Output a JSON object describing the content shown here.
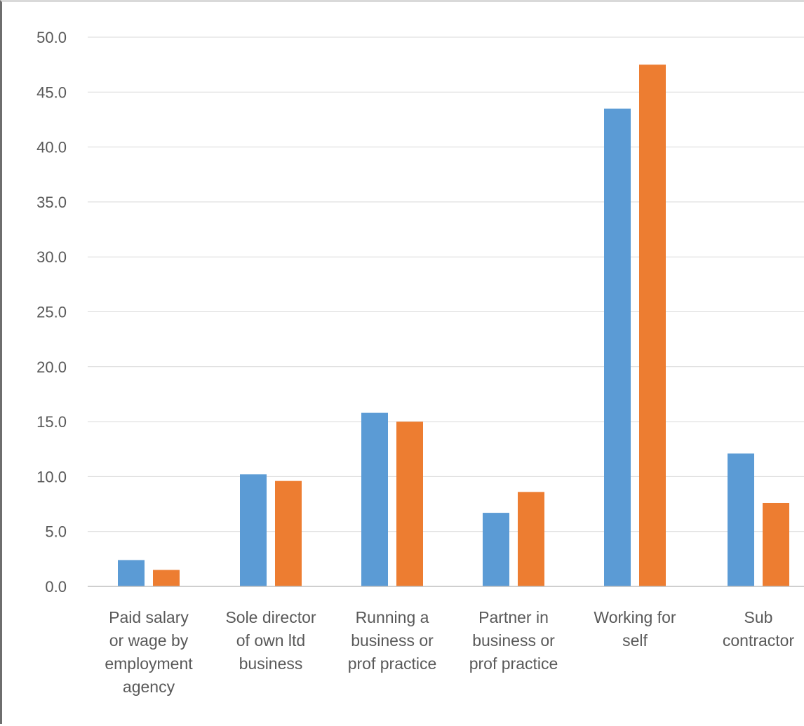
{
  "chart_data": {
    "type": "bar",
    "categories": [
      [
        "Paid salary",
        "or wage by",
        "employment",
        "agency"
      ],
      [
        "Sole director",
        "of own ltd",
        "business"
      ],
      [
        "Running a",
        "business or",
        "prof practice"
      ],
      [
        "Partner in",
        "business or",
        "prof practice"
      ],
      [
        "Working for",
        "self"
      ],
      [
        "Sub",
        "contractor"
      ]
    ],
    "series": [
      {
        "values": [
          2.4,
          10.2,
          15.8,
          6.7,
          43.5,
          12.1
        ],
        "color": "#5b9bd5"
      },
      {
        "values": [
          1.5,
          9.6,
          15.0,
          8.6,
          47.5,
          7.6
        ],
        "color": "#ed7d31"
      }
    ],
    "y_ticks": [
      "0.0",
      "5.0",
      "10.0",
      "15.0",
      "20.0",
      "25.0",
      "30.0",
      "35.0",
      "40.0",
      "45.0",
      "50.0"
    ],
    "ylim": [
      0,
      50
    ],
    "grid": true,
    "title": "",
    "xlabel": "",
    "ylabel": ""
  }
}
